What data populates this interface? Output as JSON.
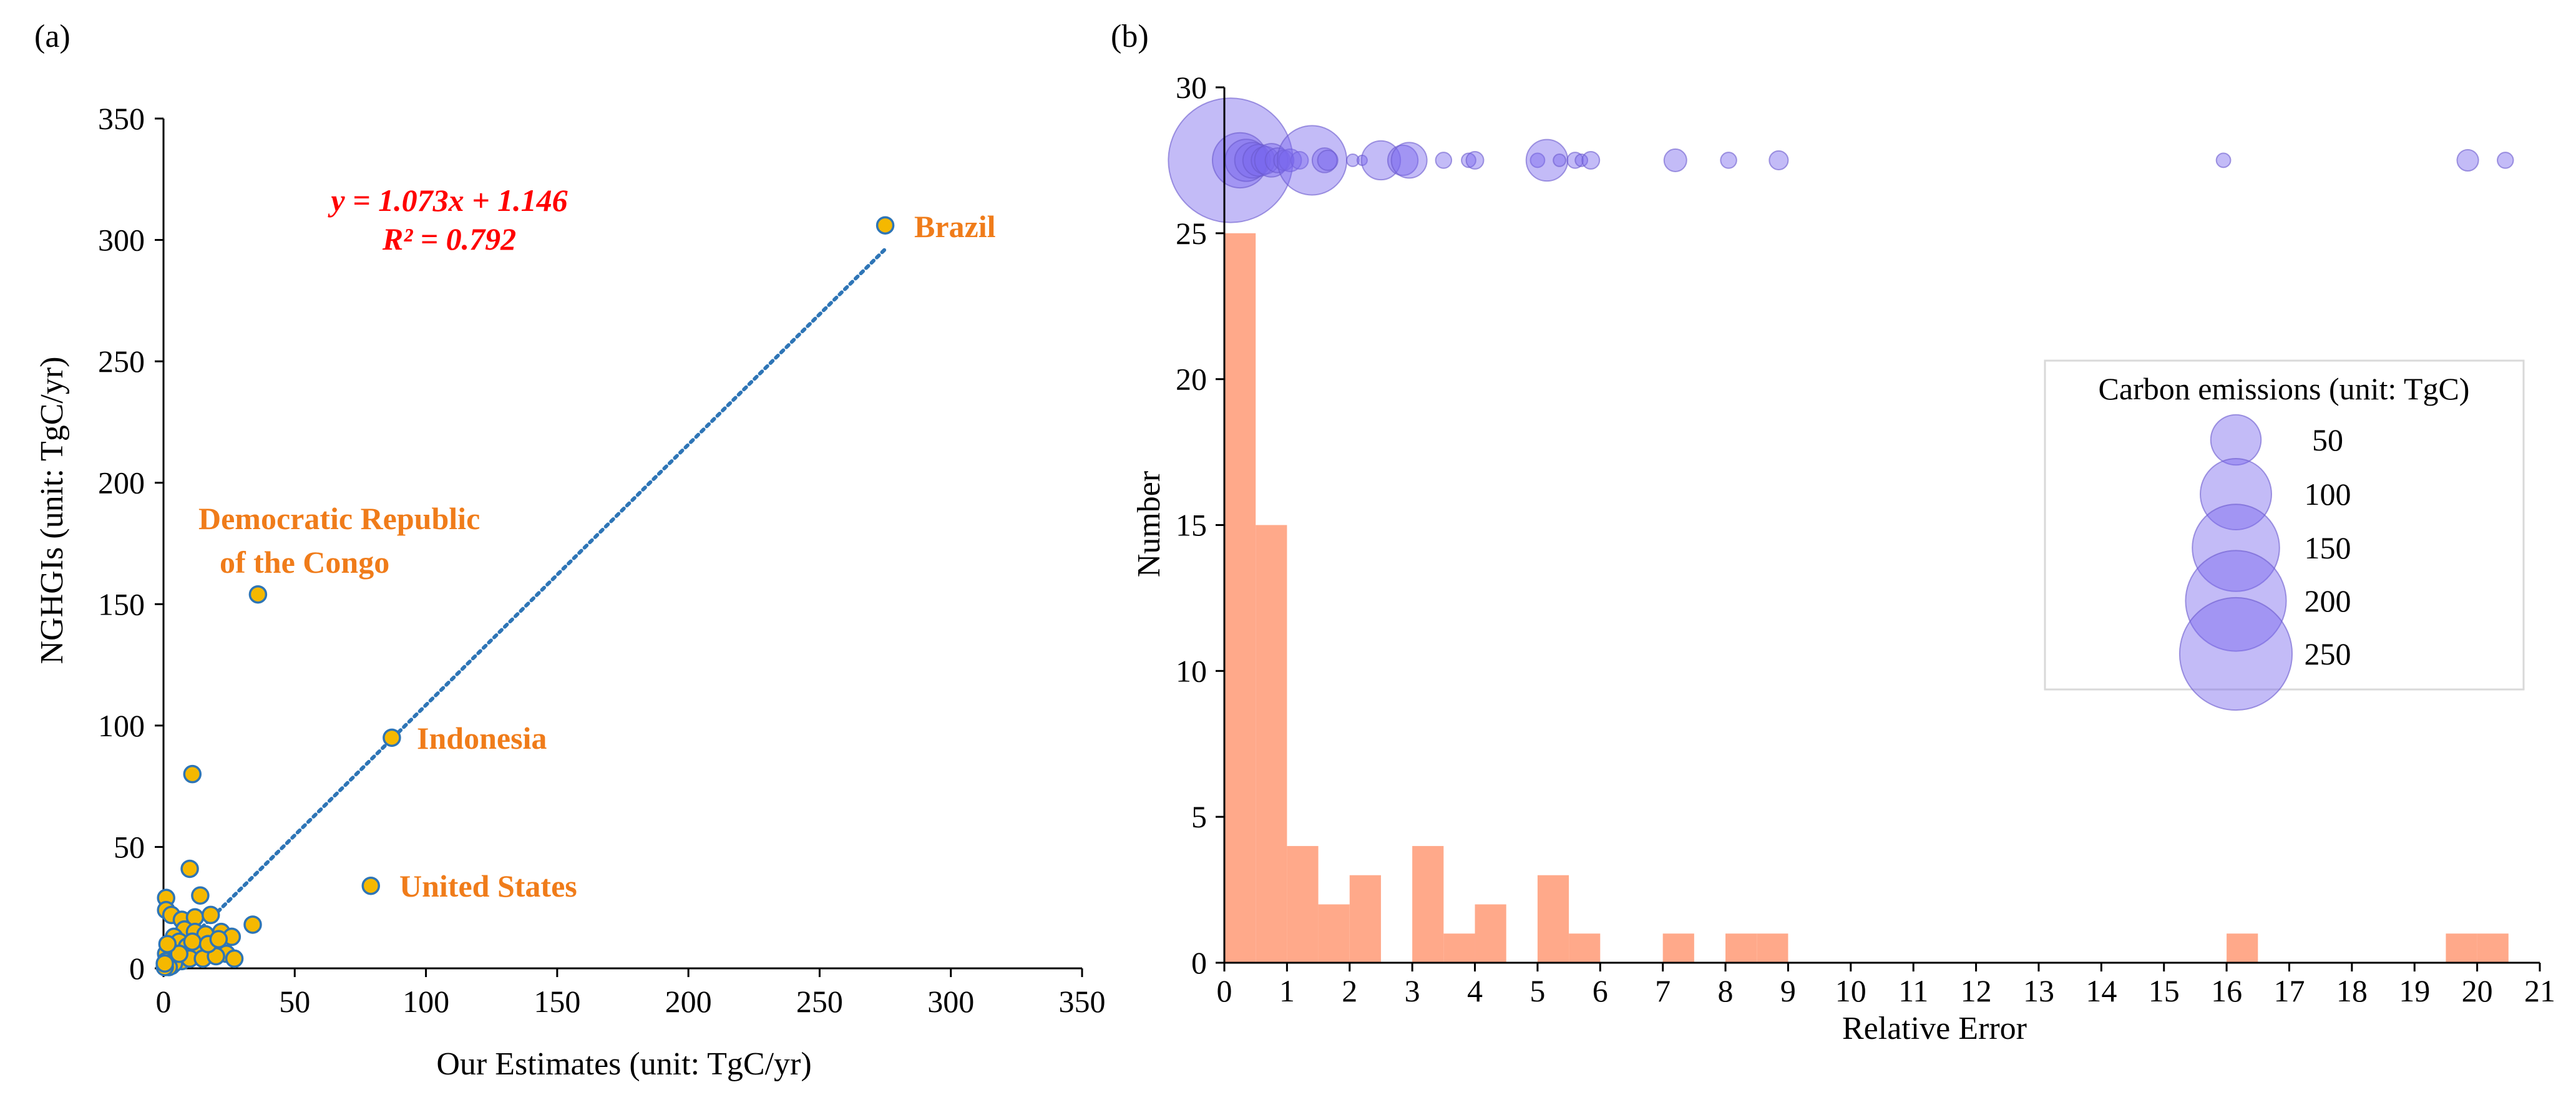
{
  "chart_data": [
    {
      "panel_label": "(a)",
      "type": "scatter",
      "xlabel": "Our Estimates (unit: TgC/yr)",
      "ylabel": "NGHGIs (unit: TgC/yr)",
      "xlim": [
        0,
        350
      ],
      "ylim": [
        0,
        350
      ],
      "xticks": [
        0,
        50,
        100,
        150,
        200,
        250,
        300,
        350
      ],
      "yticks": [
        0,
        50,
        100,
        150,
        200,
        250,
        300,
        350
      ],
      "equation": "y = 1.073x + 1.146",
      "r_squared": "R² = 0.792",
      "fit": {
        "slope": 1.073,
        "intercept": 1.146,
        "x_range": [
          4.5,
          275
        ]
      },
      "points": [
        [
          275,
          306
        ],
        [
          87,
          95
        ],
        [
          36,
          154
        ],
        [
          79,
          34
        ],
        [
          11,
          80
        ],
        [
          10,
          41
        ],
        [
          34,
          18
        ],
        [
          1,
          29
        ],
        [
          1,
          24
        ],
        [
          3,
          22
        ],
        [
          7,
          20
        ],
        [
          12,
          21
        ],
        [
          18,
          22
        ],
        [
          14,
          30
        ],
        [
          8,
          16
        ],
        [
          12,
          15
        ],
        [
          16,
          14
        ],
        [
          22,
          15
        ],
        [
          26,
          13
        ],
        [
          4,
          13
        ],
        [
          6,
          11
        ],
        [
          9,
          9
        ],
        [
          13,
          8
        ],
        [
          19,
          7
        ],
        [
          24,
          6
        ],
        [
          27,
          4
        ],
        [
          2,
          8
        ],
        [
          3,
          5
        ],
        [
          5,
          4
        ],
        [
          7,
          3
        ],
        [
          10,
          4
        ],
        [
          15,
          4
        ],
        [
          20,
          5
        ],
        [
          1,
          6
        ],
        [
          1,
          3
        ],
        [
          2,
          2
        ],
        [
          3,
          1
        ],
        [
          4,
          2
        ],
        [
          1,
          1
        ],
        [
          2,
          0.5
        ],
        [
          0.5,
          0.5
        ],
        [
          6,
          6
        ],
        [
          11,
          11
        ],
        [
          17,
          10
        ],
        [
          21,
          12
        ],
        [
          0.5,
          2
        ],
        [
          1.5,
          10
        ]
      ],
      "annotations": [
        {
          "text": "Brazil",
          "x": 275,
          "y": 306
        },
        {
          "text": "Democratic Republic",
          "x": 36,
          "y": 154
        },
        {
          "text": "of the Congo",
          "x": 36,
          "y": 154
        },
        {
          "text": "Indonesia",
          "x": 87,
          "y": 95
        },
        {
          "text": "United States",
          "x": 79,
          "y": 34
        }
      ]
    },
    {
      "panel_label": "(b)",
      "type": "bar",
      "xlabel": "Relative Error",
      "ylabel": "Number",
      "xlim": [
        0,
        21
      ],
      "ylim": [
        0,
        30
      ],
      "xticks": [
        0,
        1,
        2,
        3,
        4,
        5,
        6,
        7,
        8,
        9,
        10,
        11,
        12,
        13,
        14,
        15,
        16,
        17,
        18,
        19,
        20,
        21
      ],
      "yticks": [
        0,
        5,
        10,
        15,
        20,
        25,
        30
      ],
      "bin_width": 0.5,
      "bins": [
        {
          "x0": 0,
          "count": 25
        },
        {
          "x0": 0.5,
          "count": 15
        },
        {
          "x0": 1,
          "count": 4
        },
        {
          "x0": 1.5,
          "count": 2
        },
        {
          "x0": 2,
          "count": 3
        },
        {
          "x0": 3,
          "count": 4
        },
        {
          "x0": 3.5,
          "count": 1
        },
        {
          "x0": 4,
          "count": 2
        },
        {
          "x0": 5,
          "count": 3
        },
        {
          "x0": 5.5,
          "count": 1
        },
        {
          "x0": 7,
          "count": 1
        },
        {
          "x0": 8,
          "count": 1
        },
        {
          "x0": 8.5,
          "count": 1
        },
        {
          "x0": 16,
          "count": 1
        },
        {
          "x0": 19.5,
          "count": 1
        },
        {
          "x0": 20,
          "count": 1
        }
      ],
      "bubble_row_y": 27.5,
      "bubbles": [
        {
          "x": 0.1,
          "emissions": 306
        },
        {
          "x": 0.25,
          "emissions": 60
        },
        {
          "x": 0.35,
          "emissions": 35
        },
        {
          "x": 0.45,
          "emissions": 25
        },
        {
          "x": 0.55,
          "emissions": 20
        },
        {
          "x": 0.65,
          "emissions": 15
        },
        {
          "x": 0.75,
          "emissions": 22
        },
        {
          "x": 0.85,
          "emissions": 12
        },
        {
          "x": 0.95,
          "emissions": 8
        },
        {
          "x": 1.05,
          "emissions": 10
        },
        {
          "x": 1.2,
          "emissions": 6
        },
        {
          "x": 1.4,
          "emissions": 95
        },
        {
          "x": 1.6,
          "emissions": 12
        },
        {
          "x": 1.65,
          "emissions": 8
        },
        {
          "x": 2.05,
          "emissions": 3
        },
        {
          "x": 2.2,
          "emissions": 2
        },
        {
          "x": 2.5,
          "emissions": 30
        },
        {
          "x": 2.85,
          "emissions": 18
        },
        {
          "x": 2.95,
          "emissions": 25
        },
        {
          "x": 3.5,
          "emissions": 5
        },
        {
          "x": 3.9,
          "emissions": 4
        },
        {
          "x": 4.0,
          "emissions": 6
        },
        {
          "x": 5.0,
          "emissions": 4
        },
        {
          "x": 5.15,
          "emissions": 34
        },
        {
          "x": 5.35,
          "emissions": 3
        },
        {
          "x": 5.6,
          "emissions": 5
        },
        {
          "x": 5.7,
          "emissions": 3
        },
        {
          "x": 5.85,
          "emissions": 6
        },
        {
          "x": 7.2,
          "emissions": 10
        },
        {
          "x": 8.05,
          "emissions": 5
        },
        {
          "x": 8.85,
          "emissions": 7
        },
        {
          "x": 15.95,
          "emissions": 4
        },
        {
          "x": 19.85,
          "emissions": 9
        },
        {
          "x": 20.45,
          "emissions": 5
        }
      ],
      "legend": {
        "title": "Carbon emissions (unit: TgC)",
        "position": "center-right",
        "entries": [
          {
            "label": "50",
            "value": 50
          },
          {
            "label": "100",
            "value": 100
          },
          {
            "label": "150",
            "value": 150
          },
          {
            "label": "200",
            "value": 200
          },
          {
            "label": "250",
            "value": 250
          }
        ]
      }
    }
  ],
  "colors": {
    "scatter_fill": "#f5b800",
    "scatter_edge": "#2e75b6",
    "fit_line": "#2e75b6",
    "equation": "#ff0000",
    "annotation": "#f07c1a",
    "bar_fill": "#ffa98a",
    "bubble_fill": "#7b68ee",
    "bubble_edge": "#6a5acd",
    "axis": "#000000"
  }
}
